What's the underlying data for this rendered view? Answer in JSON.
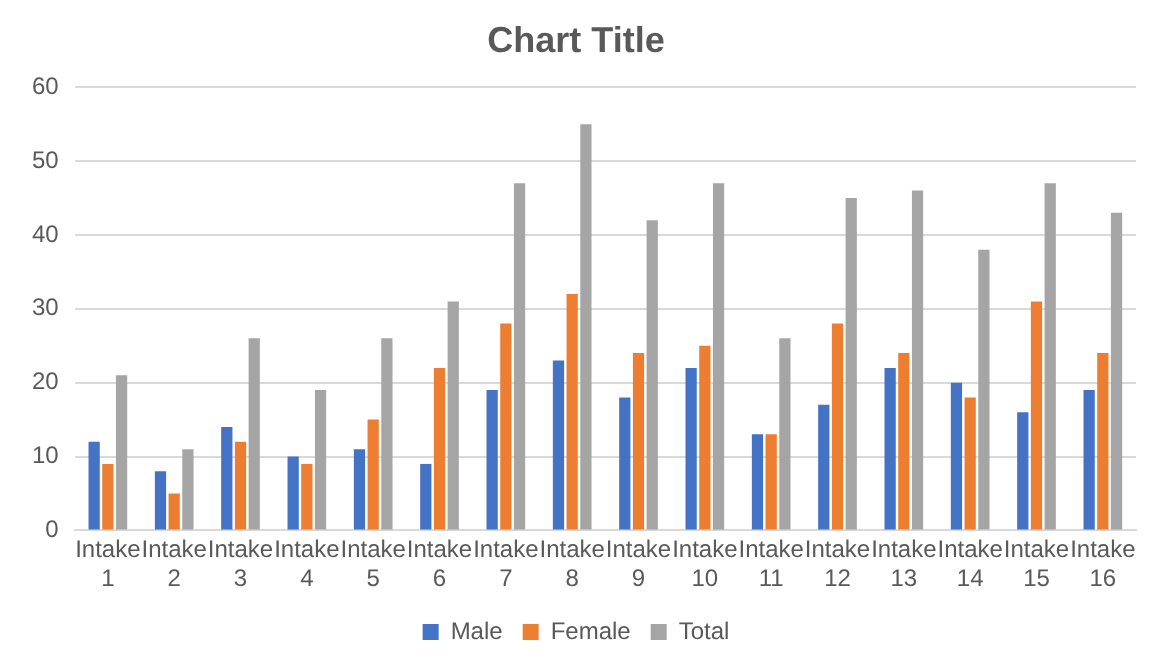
{
  "chart_data": {
    "type": "bar",
    "title": "Chart Title",
    "categories": [
      "Intake 1",
      "Intake 2",
      "Intake 3",
      "Intake 4",
      "Intake 5",
      "Intake 6",
      "Intake 7",
      "Intake 8",
      "Intake 9",
      "Intake 10",
      "Intake 11",
      "Intake 12",
      "Intake 13",
      "Intake 14",
      "Intake 15",
      "Intake 16"
    ],
    "series": [
      {
        "name": "Male",
        "color": "#4472c4",
        "values": [
          12,
          8,
          14,
          10,
          11,
          9,
          19,
          23,
          18,
          22,
          13,
          17,
          22,
          20,
          16,
          19
        ]
      },
      {
        "name": "Female",
        "color": "#ed7d31",
        "values": [
          9,
          5,
          12,
          9,
          15,
          22,
          28,
          32,
          24,
          25,
          13,
          28,
          24,
          18,
          31,
          24
        ]
      },
      {
        "name": "Total",
        "color": "#a5a5a5",
        "values": [
          21,
          11,
          26,
          19,
          26,
          31,
          47,
          55,
          42,
          47,
          26,
          45,
          46,
          38,
          47,
          43
        ]
      }
    ],
    "ylim": [
      0,
      60
    ],
    "yticks": [
      0,
      10,
      20,
      30,
      40,
      50,
      60
    ],
    "grid": "y",
    "legend": "bottom"
  }
}
